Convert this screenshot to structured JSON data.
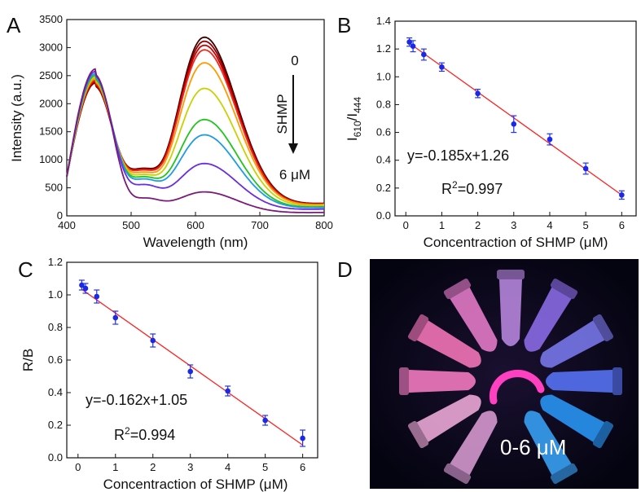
{
  "panels": {
    "A": {
      "label": "A"
    },
    "B": {
      "label": "B"
    },
    "C": {
      "label": "C"
    },
    "D": {
      "label": "D"
    }
  },
  "chart_data": [
    {
      "id": "A",
      "type": "line",
      "xlabel": "Wavelength (nm)",
      "ylabel": "Intensity (a.u.)",
      "xlim": [
        400,
        800
      ],
      "ylim": [
        0,
        3500
      ],
      "xticks": [
        400,
        500,
        600,
        700,
        800
      ],
      "yticks": [
        0,
        500,
        1000,
        1500,
        2000,
        2500,
        3000,
        3500
      ],
      "annotation": {
        "top": "0",
        "reagent": "SHMP",
        "bottom": "6 μM"
      },
      "curves": [
        {
          "color": "#3d0000",
          "start": 700,
          "peak1": 2380,
          "valley": 850,
          "peak2": 3100,
          "end": 220
        },
        {
          "color": "#8b0000",
          "start": 700,
          "peak1": 2370,
          "valley": 840,
          "peak2": 3030,
          "end": 215
        },
        {
          "color": "#c80000",
          "start": 700,
          "peak1": 2400,
          "valley": 830,
          "peak2": 2960,
          "end": 210
        },
        {
          "color": "#ee2a1e",
          "start": 700,
          "peak1": 2420,
          "valley": 820,
          "peak2": 2880,
          "end": 205
        },
        {
          "color": "#ff9a00",
          "start": 700,
          "peak1": 2450,
          "valley": 780,
          "peak2": 2650,
          "end": 200
        },
        {
          "color": "#c8d200",
          "start": 700,
          "peak1": 2480,
          "valley": 740,
          "peak2": 2200,
          "end": 180
        },
        {
          "color": "#22c41e",
          "start": 700,
          "peak1": 2510,
          "valley": 700,
          "peak2": 1650,
          "end": 160
        },
        {
          "color": "#1e9be6",
          "start": 700,
          "peak1": 2540,
          "valley": 660,
          "peak2": 1380,
          "end": 150
        },
        {
          "color": "#6a2de0",
          "start": 700,
          "peak1": 2580,
          "valley": 560,
          "peak2": 880,
          "end": 120
        },
        {
          "color": "#7a1a7a",
          "start": 700,
          "peak1": 2620,
          "valley": 320,
          "peak2": 400,
          "end": 60
        }
      ]
    },
    {
      "id": "B",
      "type": "scatter",
      "xlabel": "Concentraction of SHMP (μM)",
      "ylabel_main": "I",
      "ylabel_sub1": "610",
      "ylabel_mid": "/I",
      "ylabel_sub2": "444",
      "xlim": [
        -0.3,
        6.4
      ],
      "ylim": [
        0.0,
        1.4
      ],
      "xticks": [
        0,
        1,
        2,
        3,
        4,
        5,
        6
      ],
      "yticks": [
        0.0,
        0.2,
        0.4,
        0.6,
        0.8,
        1.0,
        1.2,
        1.4
      ],
      "x": [
        0.1,
        0.2,
        0.5,
        1,
        2,
        3,
        4,
        5,
        6
      ],
      "y": [
        1.25,
        1.22,
        1.16,
        1.07,
        0.88,
        0.66,
        0.55,
        0.34,
        0.15
      ],
      "err": [
        0.03,
        0.04,
        0.04,
        0.03,
        0.03,
        0.06,
        0.04,
        0.04,
        0.03
      ],
      "fit": {
        "slope": -0.185,
        "intercept": 1.26,
        "x0": 0.1,
        "x1": 6.0
      },
      "equation": "y=-0.185x+1.26",
      "r2_prefix": "R",
      "r2_sup": "2",
      "r2_value": "=0.997"
    },
    {
      "id": "C",
      "type": "scatter",
      "xlabel": "Concentraction of SHMP (μM)",
      "ylabel": "R/B",
      "xlim": [
        -0.3,
        6.4
      ],
      "ylim": [
        0.0,
        1.2
      ],
      "xticks": [
        0,
        1,
        2,
        3,
        4,
        5,
        6
      ],
      "yticks": [
        0.0,
        0.2,
        0.4,
        0.6,
        0.8,
        1.0,
        1.2
      ],
      "x": [
        0.1,
        0.2,
        0.5,
        1,
        2,
        3,
        4,
        5,
        6
      ],
      "y": [
        1.06,
        1.04,
        0.99,
        0.86,
        0.72,
        0.53,
        0.41,
        0.23,
        0.12
      ],
      "err": [
        0.03,
        0.03,
        0.04,
        0.04,
        0.04,
        0.04,
        0.03,
        0.03,
        0.05
      ],
      "fit": {
        "slope": -0.162,
        "intercept": 1.05,
        "x0": 0.1,
        "x1": 6.0
      },
      "equation": "y=-0.162x+1.05",
      "r2_prefix": "R",
      "r2_sup": "2",
      "r2_value": "=0.994"
    }
  ],
  "photo": {
    "caption": "0-6 μM",
    "tube_colors": [
      "#e0a0d8",
      "#f8b0e0",
      "#ff80c8",
      "#ff7ac0",
      "#ee80d0",
      "#c08ce8",
      "#9070f0",
      "#7e7cf4",
      "#5a78ff",
      "#2a9cff",
      "#3aa8ff"
    ]
  }
}
